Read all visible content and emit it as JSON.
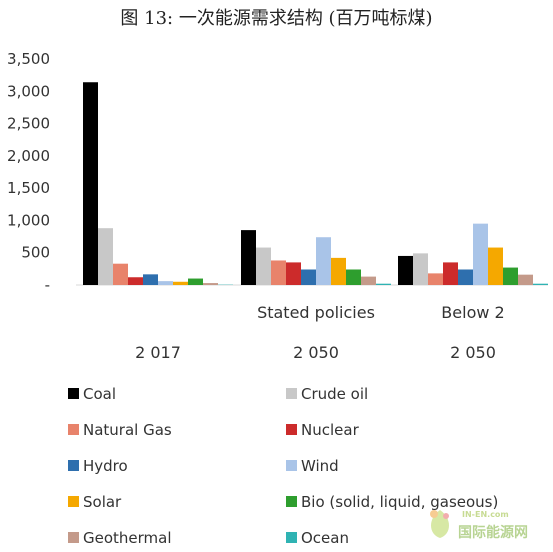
{
  "chart_data": {
    "type": "bar",
    "title": "图 13: 一次能源需求结构 (百万吨标煤)",
    "yticks": [
      "3,500",
      "3,000",
      "2,500",
      "2,000",
      "1,500",
      "1,000",
      "500",
      "-"
    ],
    "ylim": [
      0,
      3500
    ],
    "categories": [
      {
        "label": "",
        "year": "2 017"
      },
      {
        "label": "Stated policies",
        "year": "2 050"
      },
      {
        "label": "Below 2",
        "year": "2 050"
      }
    ],
    "series": [
      {
        "name": "Coal",
        "color": "#000000",
        "values": [
          3140,
          850,
          450
        ]
      },
      {
        "name": "Crude oil",
        "color": "#c8c8c8",
        "values": [
          880,
          580,
          490
        ]
      },
      {
        "name": "Natural Gas",
        "color": "#e8836b",
        "values": [
          330,
          380,
          180
        ]
      },
      {
        "name": "Nuclear",
        "color": "#cc2b2b",
        "values": [
          120,
          350,
          350
        ]
      },
      {
        "name": "Hydro",
        "color": "#2e6fae",
        "values": [
          165,
          240,
          240
        ]
      },
      {
        "name": "Wind",
        "color": "#a9c4e8",
        "values": [
          60,
          740,
          950
        ]
      },
      {
        "name": "Solar",
        "color": "#f5a800",
        "values": [
          50,
          420,
          580
        ]
      },
      {
        "name": "Bio (solid, liquid, gaseous)",
        "color": "#2e9e2e",
        "values": [
          100,
          240,
          270
        ]
      },
      {
        "name": "Geothermal",
        "color": "#c49a8a",
        "values": [
          30,
          130,
          160
        ]
      },
      {
        "name": "Ocean",
        "color": "#2fb3b3",
        "values": [
          5,
          20,
          20
        ]
      }
    ],
    "grid": false,
    "legend_position": "bottom"
  },
  "watermark": {
    "top": "IN-EN.com",
    "main": "国际能源网"
  }
}
